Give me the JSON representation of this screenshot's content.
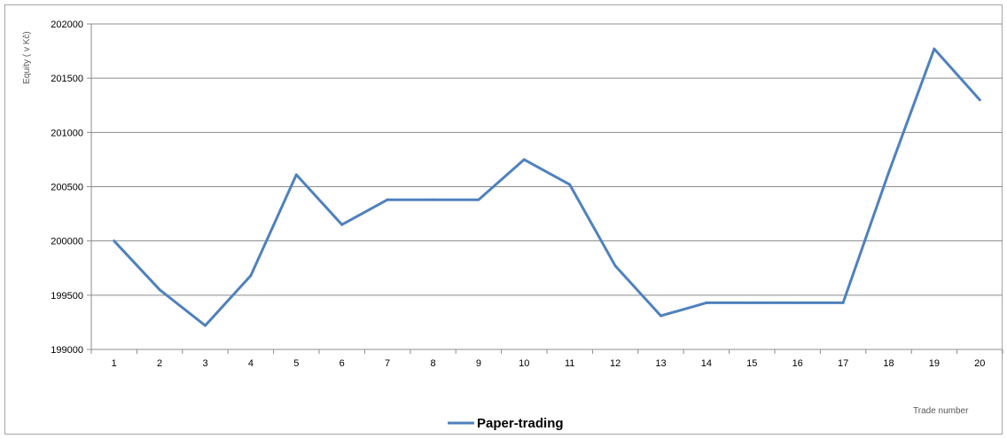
{
  "chart_data": {
    "type": "line",
    "title": "",
    "xlabel": "Trade number",
    "ylabel": "Equity ( v Kč)",
    "categories": [
      "1",
      "2",
      "3",
      "4",
      "5",
      "6",
      "7",
      "8",
      "9",
      "10",
      "11",
      "12",
      "13",
      "14",
      "15",
      "16",
      "17",
      "18",
      "19",
      "20"
    ],
    "series": [
      {
        "name": "Paper-trading",
        "color": "#4f81bd",
        "values": [
          200000,
          199550,
          199220,
          199680,
          200610,
          200150,
          200380,
          200380,
          200380,
          200750,
          200520,
          199770,
          199310,
          199430,
          199430,
          199430,
          199430,
          200630,
          201770,
          201300
        ]
      }
    ],
    "ylim": [
      199000,
      202000
    ],
    "yticks": [
      199000,
      199500,
      200000,
      200500,
      201000,
      201500,
      202000
    ],
    "grid": true,
    "legend": "bottom-center"
  }
}
